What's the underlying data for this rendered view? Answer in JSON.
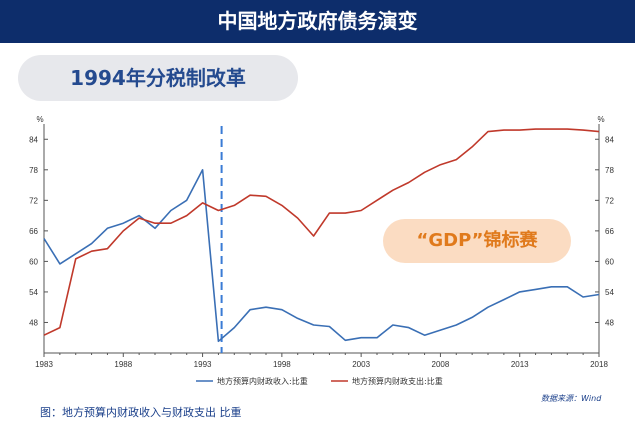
{
  "header": {
    "title": "中国地方政府债务演变"
  },
  "pill": {
    "label": "1994年分税制改革"
  },
  "badge": {
    "label": "“GDP”锦标赛"
  },
  "caption": "图：地方预算内财政收入与财政支出 比重",
  "source": "数据来源：Wind",
  "colors": {
    "revenue": "#3a6fb5",
    "expenditure": "#c0392b",
    "marker": "#3a7bd5",
    "header": "#0d2d6b"
  },
  "chart_data": {
    "type": "line",
    "y_unit": "%",
    "ylim": [
      42,
      87
    ],
    "yticks": [
      48,
      54,
      60,
      66,
      72,
      78,
      84
    ],
    "xlim": [
      1983,
      2018
    ],
    "xticks": [
      1983,
      1988,
      1993,
      1998,
      2003,
      2008,
      2013,
      2018
    ],
    "x": [
      1983,
      1984,
      1985,
      1986,
      1987,
      1988,
      1989,
      1990,
      1991,
      1992,
      1993,
      1994,
      1995,
      1996,
      1997,
      1998,
      1999,
      2000,
      2001,
      2002,
      2003,
      2004,
      2005,
      2006,
      2007,
      2008,
      2009,
      2010,
      2011,
      2012,
      2013,
      2014,
      2015,
      2016,
      2017,
      2018
    ],
    "series": [
      {
        "name": "地方预算内财政收入:比重",
        "color": "#3a6fb5",
        "values": [
          64.5,
          59.5,
          61.5,
          63.5,
          66.5,
          67.5,
          69.0,
          66.5,
          70.0,
          72.0,
          78.0,
          44.3,
          47.0,
          50.5,
          51.0,
          50.5,
          48.8,
          47.5,
          47.2,
          44.5,
          45.0,
          45.0,
          47.5,
          47.0,
          45.5,
          46.5,
          47.5,
          49.0,
          51.0,
          52.5,
          54.0,
          54.5,
          55.0,
          55.0,
          53.0,
          53.5
        ]
      },
      {
        "name": "地方预算内财政支出:比重",
        "color": "#c0392b",
        "values": [
          45.5,
          47.0,
          60.5,
          62.0,
          62.5,
          66.0,
          68.5,
          67.5,
          67.5,
          69.0,
          71.5,
          70.0,
          71.0,
          73.0,
          72.8,
          71.0,
          68.5,
          65.0,
          69.5,
          69.5,
          70.0,
          72.0,
          74.0,
          75.5,
          77.5,
          79.0,
          80.0,
          82.5,
          85.5,
          85.8,
          85.8,
          86.0,
          86.0,
          86.0,
          85.8,
          85.5
        ]
      }
    ],
    "marker_x": 1994.2,
    "grid": false,
    "legend": "bottom"
  }
}
